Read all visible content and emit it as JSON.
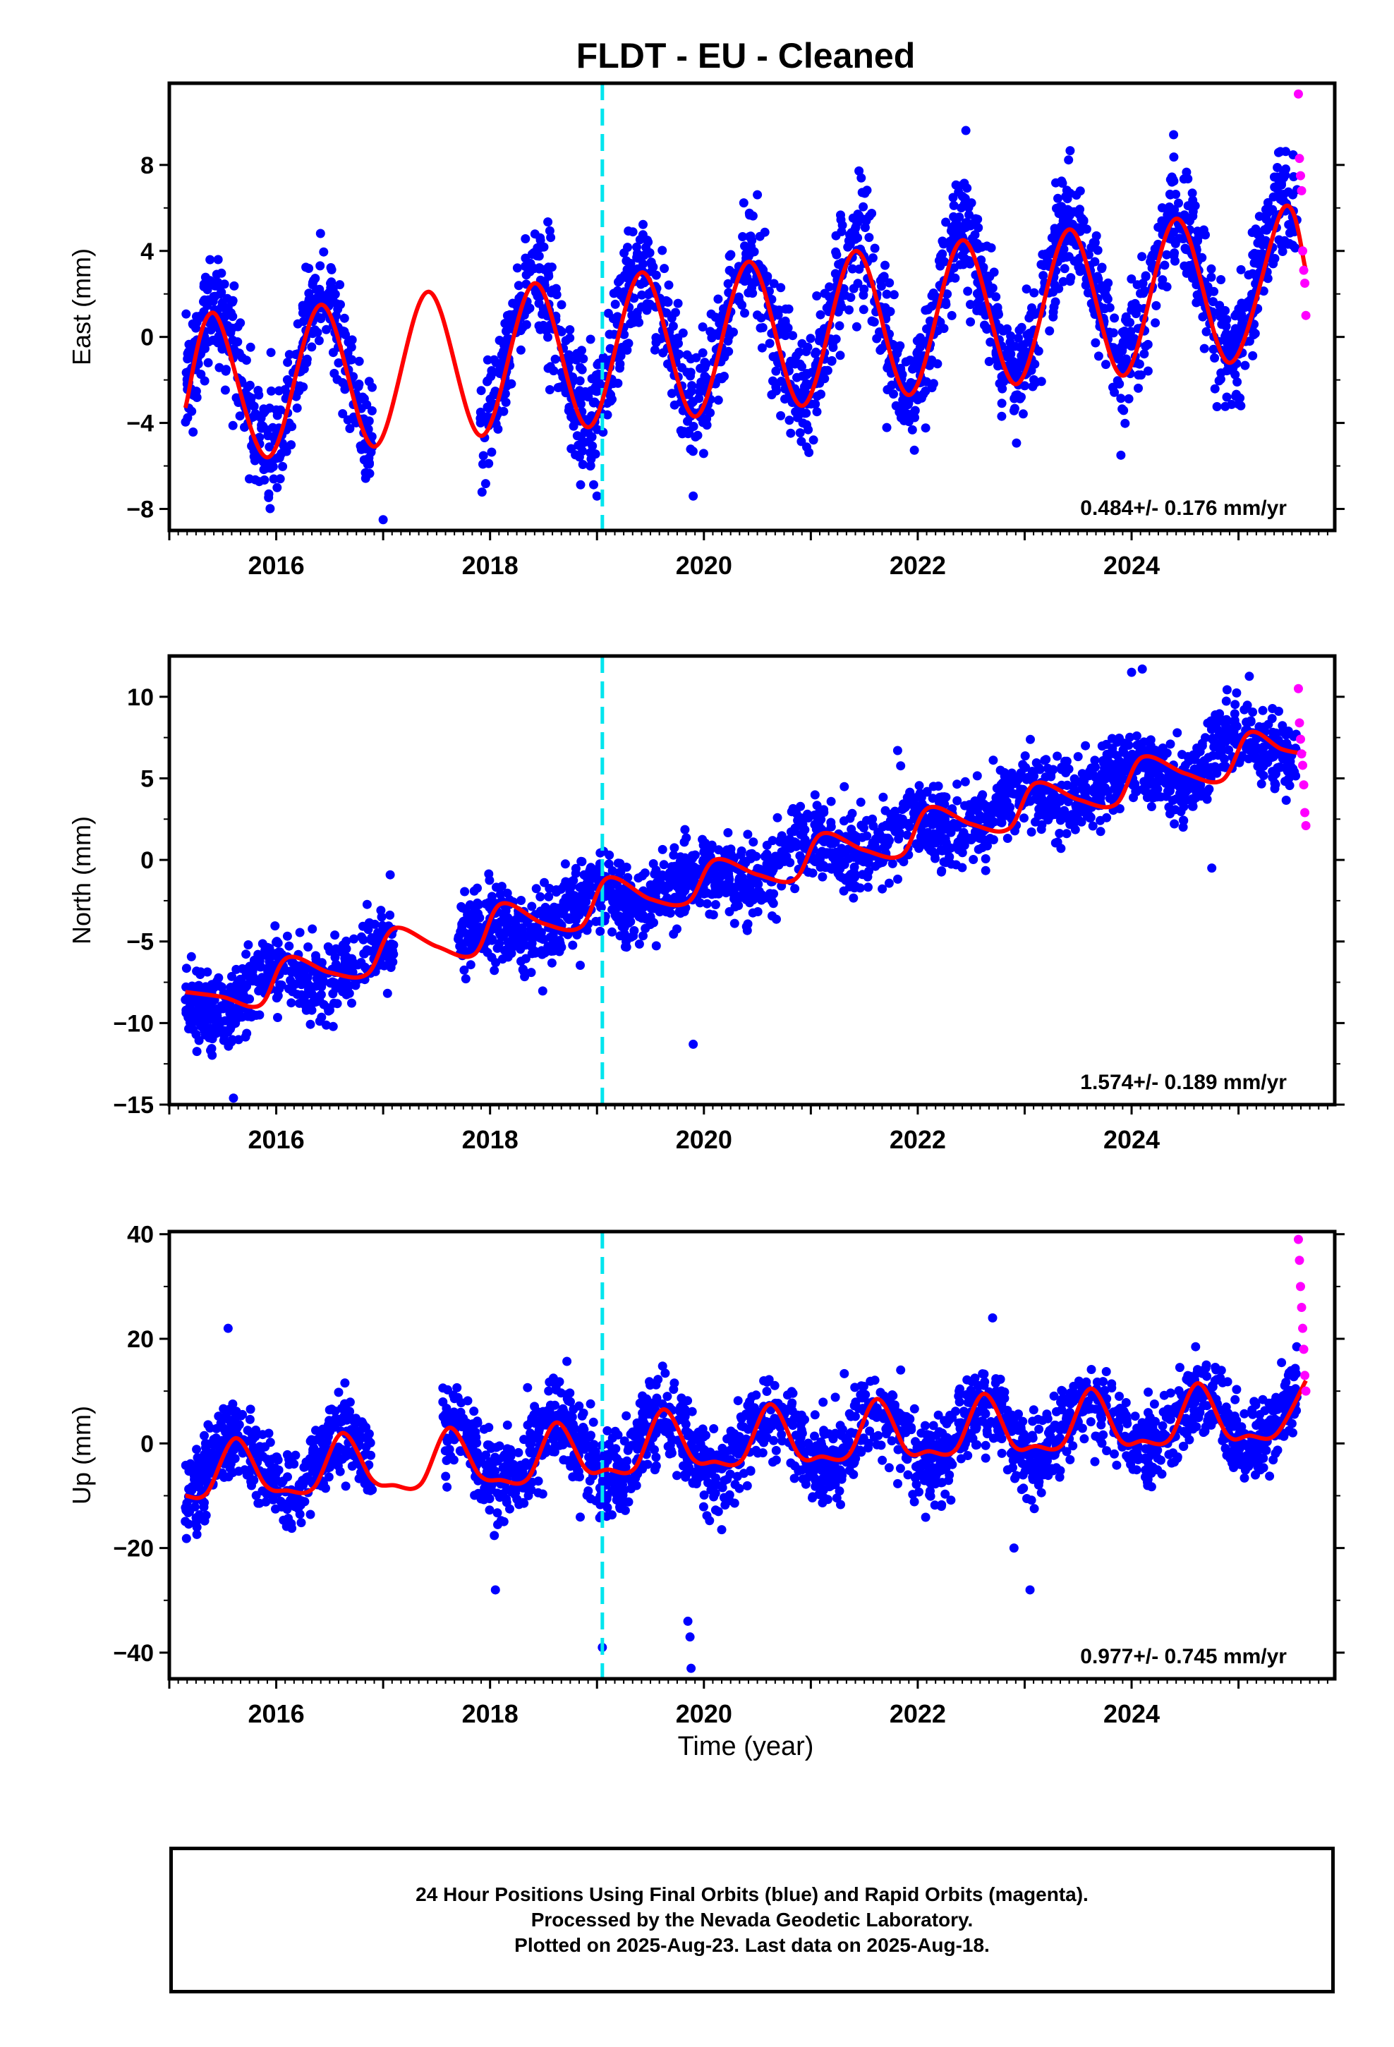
{
  "title": "FLDT  - EU - Cleaned",
  "xlabel": "Time (year)",
  "x_tick_labels": [
    "2016",
    "2018",
    "2020",
    "2022",
    "2024"
  ],
  "footer": {
    "line1": "24 Hour Positions Using Final Orbits (blue) and Rapid Orbits (magenta).",
    "line2": "Processed by the Nevada Geodetic Laboratory.",
    "line3": "Plotted on 2025-Aug-23. Last data on 2025-Aug-18."
  },
  "colors": {
    "final_points": "#0000ff",
    "rapid_points": "#ff00ff",
    "model_line": "#ff0000",
    "equipment_change": "#00e5ee"
  },
  "chart_data": [
    {
      "type": "scatter",
      "ylabel": "East (mm)",
      "xlim": [
        2015.0,
        2025.9
      ],
      "ylim": [
        -9.0,
        11.8
      ],
      "yticks": [
        -8,
        -4,
        0,
        4,
        8
      ],
      "rate": "0.484+/- 0.176 mm/yr",
      "equipment_change_year": 2019.05,
      "data_start": 2015.15,
      "data_end": 2025.55,
      "rapid_start": 2025.55,
      "rapid_end": 2025.63,
      "gap": [
        2016.9,
        2017.9
      ],
      "trend_at_start": -2.2,
      "trend_rate": 0.484,
      "annual_amplitude": 3.4,
      "peak_phase": 0.42,
      "scatter_sd": 1.3,
      "model_curve": {
        "x": [
          2015.15,
          2015.42,
          2015.92,
          2016.42,
          2016.92,
          2017.42,
          2017.92,
          2018.42,
          2018.92,
          2019.42,
          2019.92,
          2020.42,
          2020.92,
          2021.42,
          2021.92,
          2022.42,
          2022.92,
          2023.42,
          2023.92,
          2024.42,
          2024.92,
          2025.42,
          2025.63
        ],
        "y": [
          -3.3,
          1.1,
          -5.6,
          1.5,
          -5.1,
          2.1,
          -4.6,
          2.5,
          -4.2,
          3.0,
          -3.7,
          3.5,
          -3.2,
          4.0,
          -2.7,
          4.5,
          -2.2,
          5.0,
          -1.8,
          5.5,
          -1.2,
          6.0,
          3.1
        ]
      },
      "outliers": [
        {
          "x": 2017.0,
          "y": -8.5
        },
        {
          "x": 2019.0,
          "y": -7.4
        },
        {
          "x": 2019.9,
          "y": -7.4
        },
        {
          "x": 2023.9,
          "y": -5.5
        },
        {
          "x": 2022.45,
          "y": 9.6
        }
      ],
      "rapid_points": [
        {
          "x": 2025.56,
          "y": 11.3
        },
        {
          "x": 2025.57,
          "y": 8.3
        },
        {
          "x": 2025.58,
          "y": 7.5
        },
        {
          "x": 2025.59,
          "y": 6.8
        },
        {
          "x": 2025.6,
          "y": 4.0
        },
        {
          "x": 2025.61,
          "y": 3.1
        },
        {
          "x": 2025.62,
          "y": 2.5
        },
        {
          "x": 2025.63,
          "y": 1.0
        }
      ]
    },
    {
      "type": "scatter",
      "ylabel": "North (mm)",
      "xlim": [
        2015.0,
        2025.9
      ],
      "ylim": [
        -15.0,
        12.5
      ],
      "yticks": [
        -15,
        -10,
        -5,
        0,
        5,
        10
      ],
      "rate": "1.574+/- 0.189 mm/yr",
      "equipment_change_year": 2019.05,
      "data_start": 2015.15,
      "data_end": 2025.55,
      "rapid_start": 2025.55,
      "rapid_end": 2025.63,
      "gap": [
        2017.1,
        2017.7
      ],
      "trend_at_start": -8.9,
      "trend_rate": 1.574,
      "annual_amplitude": 0.9,
      "peak_phase": 0.95,
      "scatter_sd": 1.2,
      "model_curve": {
        "x": [
          2015.15,
          2015.5,
          2015.85,
          2016.1,
          2016.5,
          2016.85,
          2017.1,
          2017.5,
          2017.85,
          2018.1,
          2018.5,
          2018.85,
          2019.1,
          2019.5,
          2019.85,
          2020.1,
          2020.5,
          2020.85,
          2021.1,
          2021.5,
          2021.85,
          2022.1,
          2022.5,
          2022.85,
          2023.1,
          2023.5,
          2023.85,
          2024.1,
          2024.5,
          2024.85,
          2025.1,
          2025.4,
          2025.63
        ],
        "y": [
          -8.1,
          -8.4,
          -8.9,
          -6.0,
          -6.9,
          -7.0,
          -4.2,
          -5.3,
          -5.8,
          -2.7,
          -3.9,
          -4.1,
          -1.1,
          -2.4,
          -2.6,
          0.0,
          -0.9,
          -1.2,
          1.6,
          0.6,
          0.3,
          3.2,
          2.2,
          1.9,
          4.7,
          3.7,
          3.4,
          6.3,
          5.3,
          4.9,
          7.8,
          6.8,
          6.5
        ]
      },
      "outliers": [
        {
          "x": 2015.6,
          "y": -14.6
        },
        {
          "x": 2019.9,
          "y": -11.3
        },
        {
          "x": 2024.0,
          "y": 11.5
        },
        {
          "x": 2024.1,
          "y": 11.7
        },
        {
          "x": 2024.75,
          "y": -0.5
        }
      ],
      "rapid_points": [
        {
          "x": 2025.56,
          "y": 10.5
        },
        {
          "x": 2025.57,
          "y": 8.4
        },
        {
          "x": 2025.58,
          "y": 7.4
        },
        {
          "x": 2025.59,
          "y": 6.5
        },
        {
          "x": 2025.6,
          "y": 5.8
        },
        {
          "x": 2025.61,
          "y": 4.6
        },
        {
          "x": 2025.62,
          "y": 2.9
        },
        {
          "x": 2025.63,
          "y": 2.1
        }
      ]
    },
    {
      "type": "scatter",
      "ylabel": "Up (mm)",
      "xlim": [
        2015.0,
        2025.9
      ],
      "ylim": [
        -45.0,
        40.5
      ],
      "yticks": [
        -40,
        -20,
        0,
        20,
        40
      ],
      "rate": "0.977+/- 0.745 mm/yr",
      "equipment_change_year": 2019.05,
      "data_start": 2015.15,
      "data_end": 2025.55,
      "rapid_start": 2025.55,
      "rapid_end": 2025.63,
      "gap": [
        2016.9,
        2017.55
      ],
      "trend_at_start": -5.0,
      "trend_rate": 0.977,
      "annual_amplitude": 5.5,
      "peak_phase": 0.62,
      "scatter_sd": 4.0,
      "model_curve": {
        "x": [
          2015.15,
          2015.35,
          2015.62,
          2015.9,
          2016.1,
          2016.35,
          2016.62,
          2016.9,
          2017.1,
          2017.35,
          2017.62,
          2017.9,
          2018.1,
          2018.35,
          2018.62,
          2018.9,
          2019.1,
          2019.35,
          2019.62,
          2019.9,
          2020.1,
          2020.35,
          2020.62,
          2020.9,
          2021.1,
          2021.35,
          2021.62,
          2021.9,
          2022.1,
          2022.35,
          2022.62,
          2022.9,
          2023.1,
          2023.35,
          2023.62,
          2023.9,
          2024.1,
          2024.35,
          2024.62,
          2024.9,
          2025.1,
          2025.35,
          2025.63
        ],
        "y": [
          -10.0,
          -9.5,
          1.0,
          -8.0,
          -9.0,
          -8.5,
          2.0,
          -7.0,
          -8.0,
          -7.8,
          3.0,
          -6.0,
          -7.0,
          -6.8,
          4.0,
          -5.0,
          -5.0,
          -4.8,
          6.5,
          -3.0,
          -3.5,
          -3.3,
          7.5,
          -2.5,
          -2.5,
          -2.3,
          8.5,
          -1.5,
          -1.5,
          -1.3,
          9.5,
          -0.5,
          -0.5,
          -0.3,
          10.5,
          0.5,
          0.5,
          0.7,
          11.5,
          1.5,
          1.5,
          1.7,
          12.0
        ]
      },
      "outliers": [
        {
          "x": 2015.55,
          "y": 22.0
        },
        {
          "x": 2018.05,
          "y": -28.0
        },
        {
          "x": 2019.05,
          "y": -39.0
        },
        {
          "x": 2019.85,
          "y": -34.0
        },
        {
          "x": 2019.87,
          "y": -37.0
        },
        {
          "x": 2019.88,
          "y": -43.0
        },
        {
          "x": 2023.05,
          "y": -28.0
        },
        {
          "x": 2022.9,
          "y": -20.0
        },
        {
          "x": 2022.7,
          "y": 24.0
        }
      ],
      "rapid_points": [
        {
          "x": 2025.56,
          "y": 39.0
        },
        {
          "x": 2025.57,
          "y": 35.0
        },
        {
          "x": 2025.58,
          "y": 30.0
        },
        {
          "x": 2025.59,
          "y": 26.0
        },
        {
          "x": 2025.6,
          "y": 22.0
        },
        {
          "x": 2025.61,
          "y": 18.0
        },
        {
          "x": 2025.62,
          "y": 13.0
        },
        {
          "x": 2025.63,
          "y": 10.0
        }
      ]
    }
  ]
}
